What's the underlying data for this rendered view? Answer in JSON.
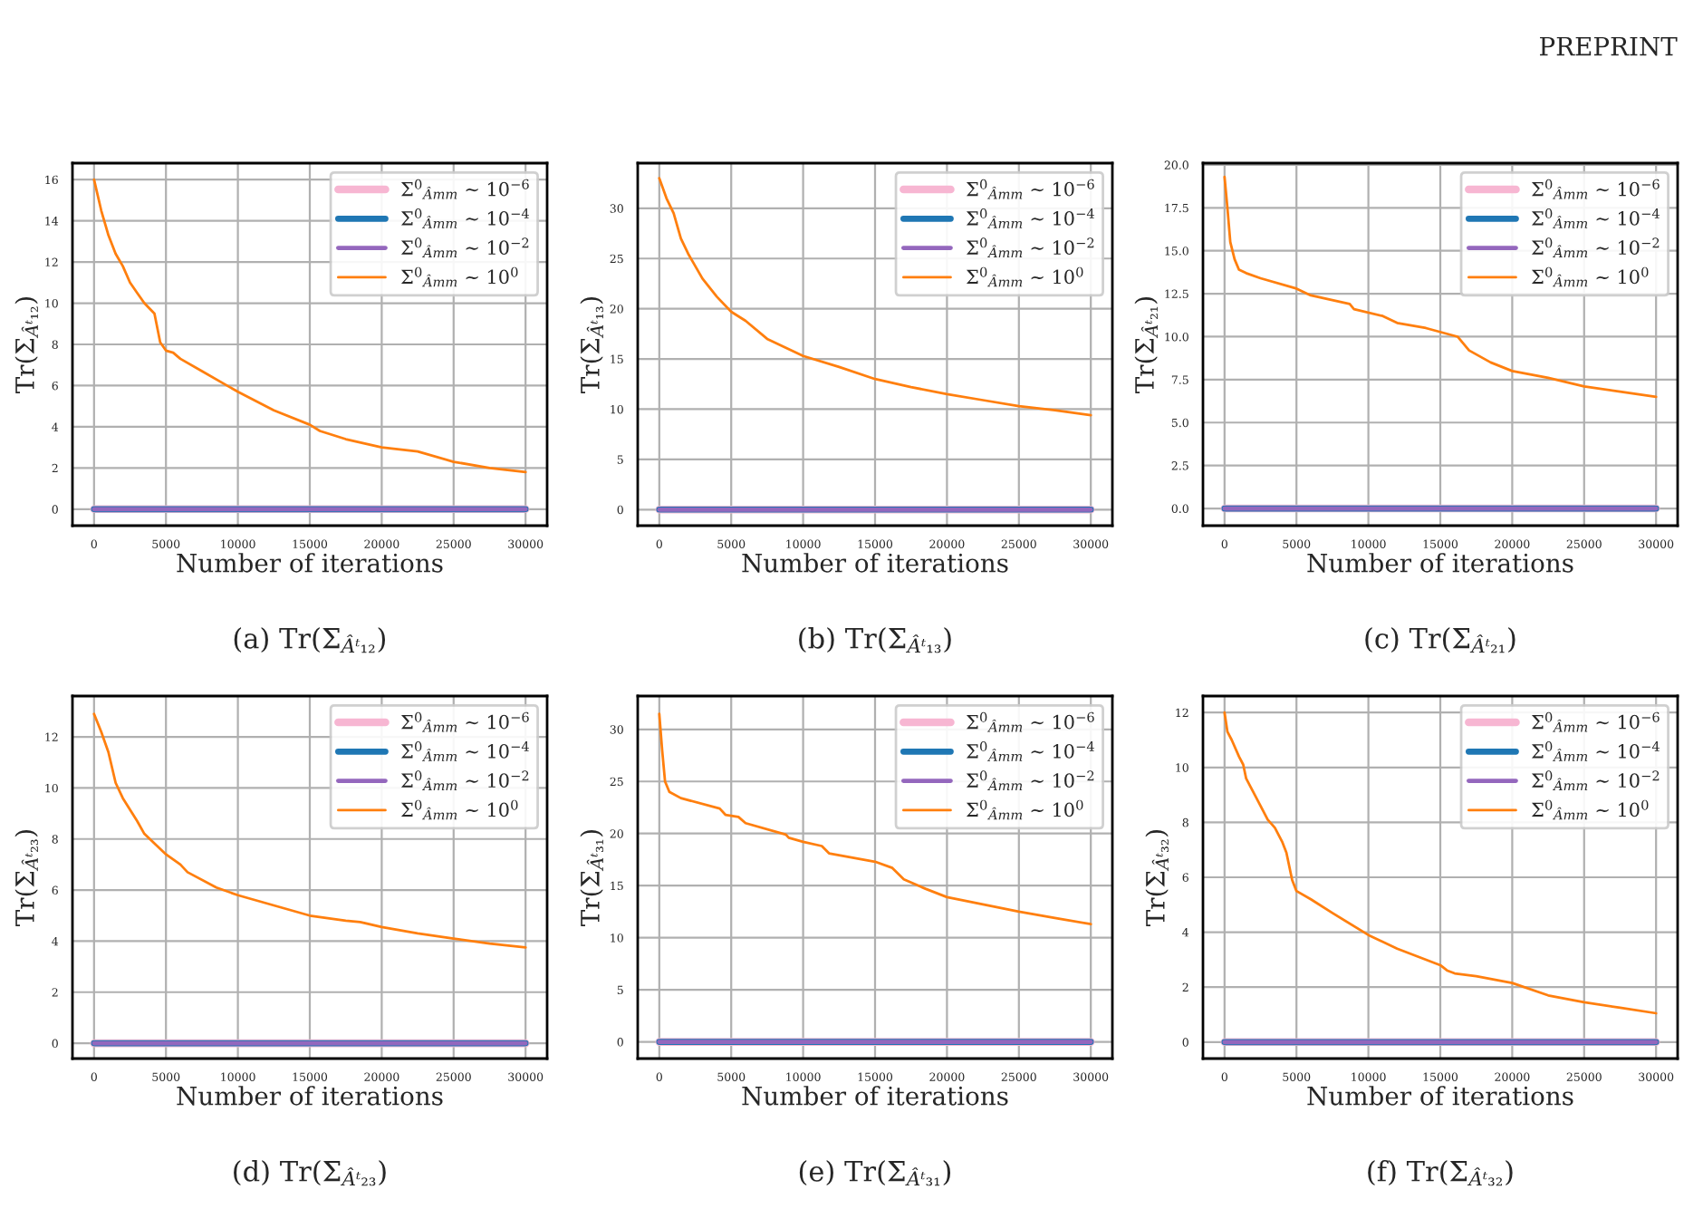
{
  "chart_data": [
    {
      "type": "line",
      "title": "(a) Tr(Σ$_{Âᵗ₁₂}$)",
      "xlabel": "Number of iterations",
      "ylabel": "Tr(Σ$_{Âᵗ₁₂}$)",
      "annotations": [
        "PREPRINT"
      ],
      "xlim": [
        -1500,
        31500
      ],
      "xticks": [
        0,
        5000,
        10000,
        15000,
        20000,
        25000,
        30000
      ],
      "ylim": [
        -0.8,
        16.8
      ],
      "yticks": [
        0,
        2,
        4,
        6,
        8,
        10,
        12,
        14,
        16
      ],
      "grid": true,
      "legend": "top right",
      "series": [
        {
          "name": "Σ$^{0}$$_{Âmm}$ ∼ 10$^{−6}$",
          "color": "#f7b6d2",
          "x": [
            0,
            30000
          ],
          "values": [
            0,
            0
          ]
        },
        {
          "name": "Σ$^{0}$$_{Âmm}$ ∼ 10$^{−4}$",
          "color": "#1f77b4",
          "x": [
            0,
            30000
          ],
          "values": [
            0,
            0
          ]
        },
        {
          "name": "Σ$^{0}$$_{Âmm}$ ∼ 10$^{−2}$",
          "color": "#9467bd",
          "x": [
            0,
            30000
          ],
          "values": [
            0,
            0
          ]
        },
        {
          "name": "Σ$^{0}$$_{Âmm}$ ∼ 10$^{0}$",
          "color": "#ff7f0e",
          "x": [
            0,
            500,
            1000,
            1500,
            2000,
            2500,
            3000,
            3500,
            4200,
            4600,
            5000,
            5500,
            6000,
            7500,
            10000,
            12500,
            15000,
            15700,
            17500,
            20000,
            22500,
            25000,
            27500,
            30000
          ],
          "values": [
            16,
            14.5,
            13.3,
            12.4,
            11.8,
            11,
            10.5,
            10,
            9.5,
            8.1,
            7.7,
            7.6,
            7.3,
            6.7,
            5.7,
            4.8,
            4.1,
            3.8,
            3.4,
            3.0,
            2.8,
            2.3,
            2.0,
            1.8
          ]
        }
      ]
    },
    {
      "type": "line",
      "title": "(b) Tr(Σ$_{Âᵗ₁₃}$)",
      "xlabel": "Number of iterations",
      "ylabel": "Tr(Σ$_{Âᵗ₁₃}$)",
      "xlim": [
        -1500,
        31500
      ],
      "xticks": [
        0,
        5000,
        10000,
        15000,
        20000,
        25000,
        30000
      ],
      "ylim": [
        -1.6,
        34.5
      ],
      "yticks": [
        0,
        5,
        10,
        15,
        20,
        25,
        30
      ],
      "grid": true,
      "legend": "top right",
      "series": [
        {
          "name": "Σ$^{0}$$_{Âmm}$ ∼ 10$^{−6}$",
          "color": "#f7b6d2",
          "x": [
            0,
            30000
          ],
          "values": [
            0,
            0
          ]
        },
        {
          "name": "Σ$^{0}$$_{Âmm}$ ∼ 10$^{−4}$",
          "color": "#1f77b4",
          "x": [
            0,
            30000
          ],
          "values": [
            0,
            0
          ]
        },
        {
          "name": "Σ$^{0}$$_{Âmm}$ ∼ 10$^{−2}$",
          "color": "#9467bd",
          "x": [
            0,
            30000
          ],
          "values": [
            0,
            0
          ]
        },
        {
          "name": "Σ$^{0}$$_{Âmm}$ ∼ 10$^{0}$",
          "color": "#ff7f0e",
          "x": [
            0,
            500,
            1000,
            1500,
            2000,
            3000,
            4000,
            5000,
            6000,
            7500,
            10000,
            12500,
            15000,
            17500,
            20000,
            22500,
            25000,
            27500,
            30000
          ],
          "values": [
            33,
            31,
            29.5,
            27,
            25.5,
            23,
            21.2,
            19.7,
            18.8,
            17,
            15.3,
            14.2,
            13,
            12.2,
            11.5,
            10.9,
            10.3,
            9.9,
            9.4
          ]
        }
      ]
    },
    {
      "type": "line",
      "title": "(c) Tr(Σ$_{Âᵗ₂₁}$)",
      "xlabel": "Number of iterations",
      "ylabel": "Tr(Σ$_{Âᵗ₂₁}$)",
      "xlim": [
        -1500,
        31500
      ],
      "xticks": [
        0,
        5000,
        10000,
        15000,
        20000,
        25000,
        30000
      ],
      "ylim": [
        -1.0,
        20.1
      ],
      "yticks": [
        {
          "value": 0,
          "label": "0.0"
        },
        2.5,
        {
          "value": 5,
          "label": "5.0"
        },
        7.5,
        {
          "value": 10,
          "label": "10.0"
        },
        12.5,
        {
          "value": 15,
          "label": "15.0"
        },
        17.5,
        {
          "value": 20,
          "label": "20.0"
        }
      ],
      "grid": true,
      "legend": "top right",
      "series": [
        {
          "name": "Σ$^{0}$$_{Âmm}$ ∼ 10$^{−6}$",
          "color": "#f7b6d2",
          "x": [
            0,
            30000
          ],
          "values": [
            0,
            0
          ]
        },
        {
          "name": "Σ$^{0}$$_{Âmm}$ ∼ 10$^{−4}$",
          "color": "#1f77b4",
          "x": [
            0,
            30000
          ],
          "values": [
            0,
            0
          ]
        },
        {
          "name": "Σ$^{0}$$_{Âmm}$ ∼ 10$^{−2}$",
          "color": "#9467bd",
          "x": [
            0,
            30000
          ],
          "values": [
            0,
            0
          ]
        },
        {
          "name": "Σ$^{0}$$_{Âmm}$ ∼ 10$^{0}$",
          "color": "#ff7f0e",
          "x": [
            0,
            200,
            400,
            700,
            1000,
            1500,
            2500,
            5000,
            6000,
            8700,
            9000,
            11000,
            12000,
            14000,
            16200,
            17000,
            18500,
            20000,
            22500,
            25000,
            27500,
            30000
          ],
          "values": [
            19.3,
            17.5,
            15.5,
            14.5,
            13.9,
            13.7,
            13.4,
            12.8,
            12.4,
            11.9,
            11.6,
            11.2,
            10.8,
            10.5,
            10.0,
            9.2,
            8.5,
            8.0,
            7.6,
            7.1,
            6.8,
            6.5
          ]
        }
      ]
    },
    {
      "type": "line",
      "title": "(d) Tr(Σ$_{Âᵗ₂₃}$)",
      "xlabel": "Number of iterations",
      "ylabel": "Tr(Σ$_{Âᵗ₂₃}$)",
      "xlim": [
        -1500,
        31500
      ],
      "xticks": [
        0,
        5000,
        10000,
        15000,
        20000,
        25000,
        30000
      ],
      "ylim": [
        -0.6,
        13.6
      ],
      "yticks": [
        0,
        2,
        4,
        6,
        8,
        10,
        12
      ],
      "grid": true,
      "legend": "top right",
      "series": [
        {
          "name": "Σ$^{0}$$_{Âmm}$ ∼ 10$^{−6}$",
          "color": "#f7b6d2",
          "x": [
            0,
            30000
          ],
          "values": [
            0,
            0
          ]
        },
        {
          "name": "Σ$^{0}$$_{Âmm}$ ∼ 10$^{−4}$",
          "color": "#1f77b4",
          "x": [
            0,
            30000
          ],
          "values": [
            0,
            0
          ]
        },
        {
          "name": "Σ$^{0}$$_{Âmm}$ ∼ 10$^{−2}$",
          "color": "#9467bd",
          "x": [
            0,
            30000
          ],
          "values": [
            0,
            0
          ]
        },
        {
          "name": "Σ$^{0}$$_{Âmm}$ ∼ 10$^{0}$",
          "color": "#ff7f0e",
          "x": [
            0,
            500,
            1000,
            1500,
            2000,
            3000,
            3500,
            5000,
            6000,
            6500,
            8500,
            10000,
            12500,
            15000,
            17500,
            18500,
            20000,
            22500,
            25000,
            27500,
            30000
          ],
          "values": [
            12.9,
            12.2,
            11.4,
            10.2,
            9.6,
            8.7,
            8.2,
            7.4,
            7.0,
            6.7,
            6.1,
            5.8,
            5.4,
            5.0,
            4.8,
            4.75,
            4.55,
            4.3,
            4.1,
            3.9,
            3.75
          ]
        }
      ]
    },
    {
      "type": "line",
      "title": "(e) Tr(Σ$_{Âᵗ₃₁}$)",
      "xlabel": "Number of iterations",
      "ylabel": "Tr(Σ$_{Âᵗ₃₁}$)",
      "xlim": [
        -1500,
        31500
      ],
      "xticks": [
        0,
        5000,
        10000,
        15000,
        20000,
        25000,
        30000
      ],
      "ylim": [
        -1.6,
        33.2
      ],
      "yticks": [
        0,
        5,
        10,
        15,
        20,
        25,
        30
      ],
      "grid": true,
      "legend": "top right",
      "series": [
        {
          "name": "Σ$^{0}$$_{Âmm}$ ∼ 10$^{−6}$",
          "color": "#f7b6d2",
          "x": [
            0,
            30000
          ],
          "values": [
            0,
            0
          ]
        },
        {
          "name": "Σ$^{0}$$_{Âmm}$ ∼ 10$^{−4}$",
          "color": "#1f77b4",
          "x": [
            0,
            30000
          ],
          "values": [
            0,
            0
          ]
        },
        {
          "name": "Σ$^{0}$$_{Âmm}$ ∼ 10$^{−2}$",
          "color": "#9467bd",
          "x": [
            0,
            30000
          ],
          "values": [
            0,
            0
          ]
        },
        {
          "name": "Σ$^{0}$$_{Âmm}$ ∼ 10$^{0}$",
          "color": "#ff7f0e",
          "x": [
            0,
            200,
            400,
            700,
            1500,
            4200,
            4600,
            5500,
            6000,
            8800,
            9000,
            10000,
            11300,
            11800,
            15000,
            16200,
            17000,
            18500,
            20000,
            22500,
            25000,
            27500,
            30000
          ],
          "values": [
            31.5,
            28,
            25,
            24,
            23.4,
            22.4,
            21.8,
            21.6,
            21,
            19.9,
            19.6,
            19.2,
            18.8,
            18.1,
            17.3,
            16.7,
            15.6,
            14.7,
            13.9,
            13.2,
            12.5,
            11.9,
            11.3
          ]
        }
      ]
    },
    {
      "type": "line",
      "title": "(f) Tr(Σ$_{Âᵗ₃₂}$)",
      "xlabel": "Number of iterations",
      "ylabel": "Tr(Σ$_{Âᵗ₃₂}$)",
      "xlim": [
        -1500,
        31500
      ],
      "xticks": [
        0,
        5000,
        10000,
        15000,
        20000,
        25000,
        30000
      ],
      "ylim": [
        -0.6,
        12.6
      ],
      "yticks": [
        0,
        2,
        4,
        6,
        8,
        10,
        12
      ],
      "grid": true,
      "legend": "top right",
      "series": [
        {
          "name": "Σ$^{0}$$_{Âmm}$ ∼ 10$^{−6}$",
          "color": "#f7b6d2",
          "x": [
            0,
            30000
          ],
          "values": [
            0,
            0
          ]
        },
        {
          "name": "Σ$^{0}$$_{Âmm}$ ∼ 10$^{−4}$",
          "color": "#1f77b4",
          "x": [
            0,
            30000
          ],
          "values": [
            0,
            0
          ]
        },
        {
          "name": "Σ$^{0}$$_{Âmm}$ ∼ 10$^{−2}$",
          "color": "#9467bd",
          "x": [
            0,
            30000
          ],
          "values": [
            0,
            0
          ]
        },
        {
          "name": "Σ$^{0}$$_{Âmm}$ ∼ 10$^{0}$",
          "color": "#ff7f0e",
          "x": [
            0,
            200,
            500,
            1000,
            1300,
            1500,
            2500,
            3000,
            3500,
            4000,
            4300,
            4700,
            5000,
            6000,
            7500,
            10000,
            12000,
            15000,
            15500,
            16000,
            17500,
            20000,
            22500,
            25000,
            27500,
            30000
          ],
          "values": [
            12,
            11.3,
            11,
            10.4,
            10.1,
            9.6,
            8.6,
            8.1,
            7.8,
            7.3,
            6.9,
            5.9,
            5.5,
            5.2,
            4.7,
            3.9,
            3.4,
            2.8,
            2.6,
            2.5,
            2.4,
            2.15,
            1.7,
            1.45,
            1.25,
            1.05
          ]
        }
      ]
    }
  ]
}
